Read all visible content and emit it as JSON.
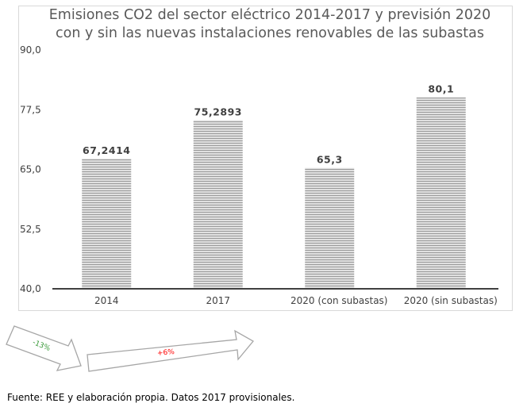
{
  "chart_data": {
    "type": "bar",
    "title": [
      "Emisiones CO2 del sector eléctrico 2014-2017 y previsión 2020",
      "con y sin las nuevas instalaciones renovables de las subastas"
    ],
    "xlabel": "",
    "ylabel": "",
    "categories": [
      "2014",
      "2017",
      "2020 (con subastas)",
      "2020 (sin subastas)"
    ],
    "values": [
      67.2414,
      75.2893,
      65.3,
      80.1
    ],
    "data_labels": [
      "67,2414",
      "75,2893",
      "65,3",
      "80,1"
    ],
    "ylim": [
      40,
      90
    ],
    "yticks": [
      40,
      52.5,
      65,
      77.5,
      90
    ],
    "ytick_labels": [
      "40,0",
      "52,5",
      "65,0",
      "77,5",
      "90,0"
    ],
    "grid": false,
    "legend": "none",
    "bar_fill": "#bfbfbf",
    "bar_stripe": "#8c8c8c"
  },
  "annotations": {
    "arrow_down_label": "-13%",
    "arrow_down_color": "#3a9a3a",
    "arrow_up_label": "+6%",
    "arrow_up_color": "#ff0000"
  },
  "source": "Fuente: REE y elaboración propia. Datos 2017 provisionales."
}
